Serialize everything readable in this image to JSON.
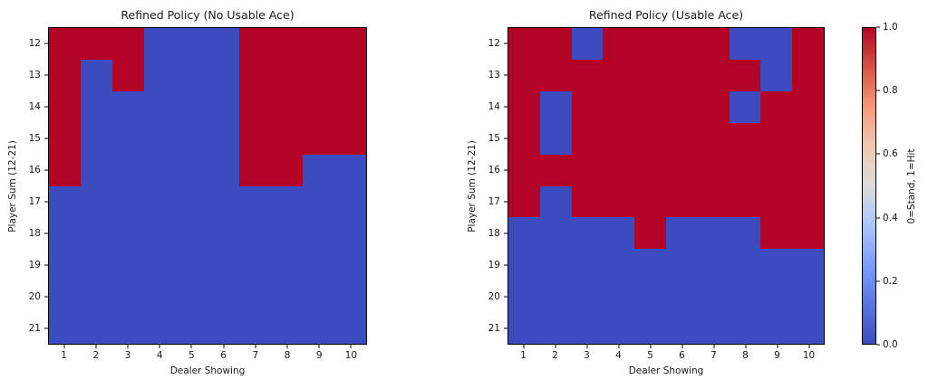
{
  "figure": {
    "background": "#ffffff",
    "text_color": "#1a1a1a",
    "colors": {
      "stand": "#3b4cc0",
      "hit": "#b40426"
    }
  },
  "chart_data": [
    {
      "type": "heatmap",
      "title": "Refined Policy (No Usable Ace)",
      "xlabel": "Dealer Showing",
      "ylabel": "Player Sum (12-21)",
      "x_ticks": [
        "1",
        "2",
        "3",
        "4",
        "5",
        "6",
        "7",
        "8",
        "9",
        "10"
      ],
      "y_ticks": [
        "12",
        "13",
        "14",
        "15",
        "16",
        "17",
        "18",
        "19",
        "20",
        "21"
      ],
      "value_meaning": "0=Stand, 1=Hit",
      "colormap": "coolwarm",
      "grid": false,
      "values": [
        [
          1,
          1,
          1,
          0,
          0,
          0,
          1,
          1,
          1,
          1
        ],
        [
          1,
          0,
          1,
          0,
          0,
          0,
          1,
          1,
          1,
          1
        ],
        [
          1,
          0,
          0,
          0,
          0,
          0,
          1,
          1,
          1,
          1
        ],
        [
          1,
          0,
          0,
          0,
          0,
          0,
          1,
          1,
          1,
          1
        ],
        [
          1,
          0,
          0,
          0,
          0,
          0,
          1,
          1,
          0,
          0
        ],
        [
          0,
          0,
          0,
          0,
          0,
          0,
          0,
          0,
          0,
          0
        ],
        [
          0,
          0,
          0,
          0,
          0,
          0,
          0,
          0,
          0,
          0
        ],
        [
          0,
          0,
          0,
          0,
          0,
          0,
          0,
          0,
          0,
          0
        ],
        [
          0,
          0,
          0,
          0,
          0,
          0,
          0,
          0,
          0,
          0
        ],
        [
          0,
          0,
          0,
          0,
          0,
          0,
          0,
          0,
          0,
          0
        ]
      ]
    },
    {
      "type": "heatmap",
      "title": "Refined Policy (Usable Ace)",
      "xlabel": "Dealer Showing",
      "ylabel": "Player Sum (12-21)",
      "x_ticks": [
        "1",
        "2",
        "3",
        "4",
        "5",
        "6",
        "7",
        "8",
        "9",
        "10"
      ],
      "y_ticks": [
        "12",
        "13",
        "14",
        "15",
        "16",
        "17",
        "18",
        "19",
        "20",
        "21"
      ],
      "value_meaning": "0=Stand, 1=Hit",
      "colormap": "coolwarm",
      "grid": false,
      "values": [
        [
          1,
          1,
          0,
          1,
          1,
          1,
          1,
          0,
          0,
          1
        ],
        [
          1,
          1,
          1,
          1,
          1,
          1,
          1,
          1,
          0,
          1
        ],
        [
          1,
          0,
          1,
          1,
          1,
          1,
          1,
          0,
          1,
          1
        ],
        [
          1,
          0,
          1,
          1,
          1,
          1,
          1,
          1,
          1,
          1
        ],
        [
          1,
          1,
          1,
          1,
          1,
          1,
          1,
          1,
          1,
          1
        ],
        [
          1,
          0,
          1,
          1,
          1,
          1,
          1,
          1,
          1,
          1
        ],
        [
          0,
          0,
          0,
          0,
          1,
          0,
          0,
          0,
          1,
          1
        ],
        [
          0,
          0,
          0,
          0,
          0,
          0,
          0,
          0,
          0,
          0
        ],
        [
          0,
          0,
          0,
          0,
          0,
          0,
          0,
          0,
          0,
          0
        ],
        [
          0,
          0,
          0,
          0,
          0,
          0,
          0,
          0,
          0,
          0
        ]
      ]
    }
  ],
  "colorbar": {
    "label": "0=Stand, 1=Hit",
    "ticks_top_to_bottom": [
      "1.0",
      "0.8",
      "0.6",
      "0.4",
      "0.2",
      "0.0"
    ],
    "range": [
      0.0,
      1.0
    ],
    "colormap": "coolwarm",
    "gradient_stops_bottom_to_top": [
      "#3b4cc0 0%",
      "#5876e2 12.5%",
      "#7b9ef8 25%",
      "#a8c6fc 37.5%",
      "#dddcdb 50%",
      "#f0c8b0 62.5%",
      "#f49a7a 75%",
      "#d65344 87.5%",
      "#b40426 100%"
    ]
  }
}
